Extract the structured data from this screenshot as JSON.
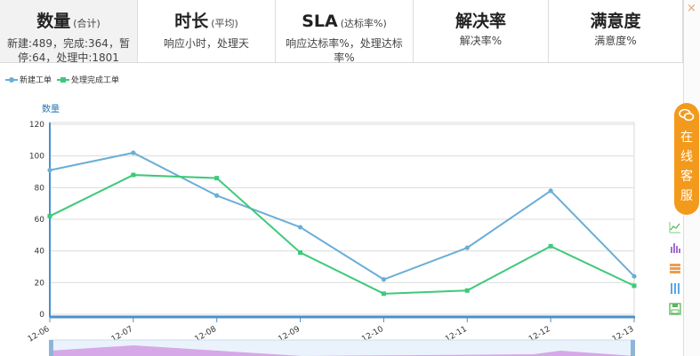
{
  "tabs": [
    {
      "title": "数量",
      "sub": "(合计)",
      "desc": "新建:489，完成:364，暂停:64，处理中:1801",
      "active": true
    },
    {
      "title": "时长",
      "sub": "(平均)",
      "desc": "响应小时，处理天",
      "active": false
    },
    {
      "title": "SLA",
      "sub": "(达标率%)",
      "desc": "响应达标率%，处理达标率%",
      "active": false
    },
    {
      "title": "解决率",
      "sub": "",
      "desc": "解决率%",
      "active": false
    },
    {
      "title": "满意度",
      "sub": "",
      "desc": "满意度%",
      "active": false
    }
  ],
  "close_glyph": "×",
  "customer_service": {
    "chars": [
      "在",
      "线",
      "客",
      "服"
    ],
    "color": "#f39a1c"
  },
  "toolbar_icons": [
    "line-chart-icon",
    "bar-chart-icon",
    "stack-icon",
    "tiled-icon",
    "save-image-icon"
  ],
  "chart_data": {
    "type": "line",
    "ylabel": "数量",
    "categories": [
      "12-06",
      "12-07",
      "12-08",
      "12-09",
      "12-10",
      "12-11",
      "12-12",
      "12-13"
    ],
    "ylim": [
      0,
      120
    ],
    "yticks": [
      0,
      20,
      40,
      60,
      80,
      100,
      120
    ],
    "grid": true,
    "legend_position": "top-left",
    "series": [
      {
        "name": "新建工单",
        "color": "#6aaed6",
        "marker": "circle",
        "values": [
          91,
          102,
          75,
          55,
          22,
          42,
          78,
          24
        ]
      },
      {
        "name": "处理完成工单",
        "color": "#3ec97a",
        "marker": "square",
        "values": [
          62,
          88,
          86,
          39,
          13,
          15,
          43,
          18
        ]
      }
    ]
  }
}
